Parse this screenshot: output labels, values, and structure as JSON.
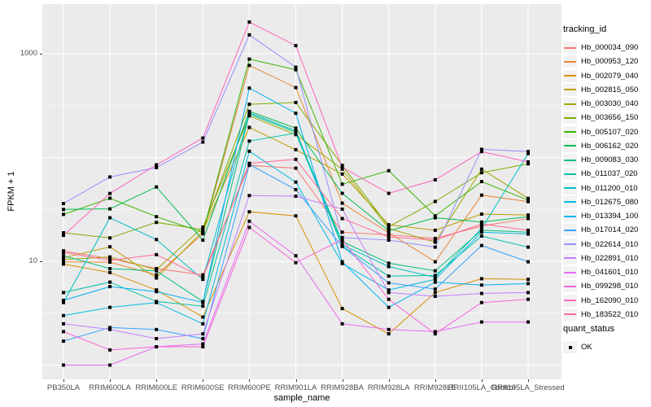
{
  "figure": {
    "panel_background": "#EBEBEB",
    "grid_color": "#FFFFFF",
    "point_color": "#000000",
    "axis_text_color": "#4D4D4D"
  },
  "chart_data": {
    "type": "line",
    "xlabel": "sample_name",
    "ylabel": "FPKM + 1",
    "y_scale": "log10",
    "y_ticks": [
      10,
      1000
    ],
    "y_tick_labels": [
      "10",
      "1000"
    ],
    "y_minor_ticks": [
      3.162,
      31.62,
      316.2
    ],
    "y_major_gridlines": [
      1,
      10,
      100,
      1000
    ],
    "ylim": [
      0.73,
      3000
    ],
    "grid": true,
    "legend_position": "right",
    "legend_title": "tracking_id",
    "point_shape": "filled-square",
    "categories": [
      "PB350LA",
      "RRIM600LA",
      "RRIM600LE",
      "RRIM600SE",
      "RRIM600PE",
      "RRIM901LA",
      "RRIM928BA",
      "RRIM928LA",
      "RRIM928LE",
      "RRII105LA_Control",
      "RRII105LA_Stressed"
    ],
    "series": [
      {
        "name": "Hb_000034_090",
        "color": "#F8766D",
        "values": [
          12.6,
          10.6,
          8.5,
          7.4,
          84,
          79,
          19.1,
          18,
          16.6,
          21.9,
          25.8
        ]
      },
      {
        "name": "Hb_000953_120",
        "color": "#EA8331",
        "values": [
          9.9,
          9.8,
          7.4,
          18.4,
          773,
          472,
          36.3,
          18.8,
          9.9,
          43.4,
          37.6
        ]
      },
      {
        "name": "Hb_002079_040",
        "color": "#D89000",
        "values": [
          9.4,
          7.8,
          5.3,
          2.9,
          30,
          27.4,
          3.5,
          2,
          5,
          6.8,
          6.7
        ]
      },
      {
        "name": "Hb_002815_050",
        "color": "#C09B00",
        "values": [
          10.8,
          13.8,
          6.9,
          19.5,
          195,
          119,
          69.3,
          22.5,
          19.9,
          28.5,
          27.9
        ]
      },
      {
        "name": "Hb_003030_040",
        "color": "#A3A500",
        "values": [
          10.4,
          11,
          8.3,
          21.3,
          252,
          166,
          77.3,
          20.7,
          15.3,
          77.3,
          40.4
        ]
      },
      {
        "name": "Hb_003656_150",
        "color": "#7CAE00",
        "values": [
          18.8,
          16.8,
          23.7,
          20.2,
          326,
          339,
          84,
          21.6,
          37.7,
          71.4,
          86.8
        ]
      },
      {
        "name": "Hb_005107_020",
        "color": "#39B600",
        "values": [
          28.3,
          40.5,
          26.9,
          19,
          887,
          700,
          55.3,
          74.7,
          27.4,
          58.6,
          38.9
        ]
      },
      {
        "name": "Hb_006162_020",
        "color": "#00BB4E",
        "values": [
          31.6,
          32,
          52,
          16,
          279,
          192,
          45.2,
          19.7,
          26.3,
          23.9,
          26.9
        ]
      },
      {
        "name": "Hb_009083_030",
        "color": "#00BF7D",
        "values": [
          11.3,
          8.5,
          8.1,
          4.1,
          263,
          175,
          15.5,
          9.6,
          8.1,
          19.9,
          19.1
        ]
      },
      {
        "name": "Hb_011037_020",
        "color": "#00C1A3",
        "values": [
          5,
          6.3,
          4.1,
          3.7,
          144,
          172,
          14,
          7.2,
          7.3,
          17.5,
          13.7
        ]
      },
      {
        "name": "Hb_011200_010",
        "color": "#00BFC4",
        "values": [
          4,
          26.3,
          16.2,
          6.7,
          270,
          181,
          14.4,
          8.9,
          7,
          20.7,
          109
        ]
      },
      {
        "name": "Hb_012675_080",
        "color": "#00BAE0",
        "values": [
          3,
          3.6,
          4,
          2.5,
          115,
          58,
          9.5,
          5.3,
          6.7,
          19.1,
          18.3
        ]
      },
      {
        "name": "Hb_013394_100",
        "color": "#00B0F6",
        "values": [
          4.2,
          5.7,
          5.1,
          4,
          467,
          267,
          9.9,
          3.6,
          6.3,
          5.9,
          6.1
        ]
      },
      {
        "name": "Hb_017014_020",
        "color": "#35A2FF",
        "values": [
          1.7,
          2.3,
          2.2,
          1.8,
          86,
          49,
          13.9,
          6.2,
          5.4,
          14.2,
          9.9
        ]
      },
      {
        "name": "Hb_022614_010",
        "color": "#9590FF",
        "values": [
          36,
          65,
          80,
          141,
          1520,
          741,
          16.9,
          16,
          13.7,
          120,
          114
        ]
      },
      {
        "name": "Hb_022891_010",
        "color": "#C77CFF",
        "values": [
          2.5,
          2.2,
          1.8,
          2,
          43,
          42.4,
          31.8,
          5,
          4.6,
          4.9,
          5
        ]
      },
      {
        "name": "Hb_041601_010",
        "color": "#E76BF3",
        "values": [
          1,
          1,
          1.5,
          1.6,
          24.3,
          11.3,
          2.5,
          2.2,
          2.1,
          2.6,
          2.6
        ]
      },
      {
        "name": "Hb_099298_010",
        "color": "#FA62DB",
        "values": [
          2.1,
          1.4,
          1.5,
          1.5,
          21.2,
          9.7,
          16.2,
          4.3,
          2,
          4,
          4.3
        ]
      },
      {
        "name": "Hb_162090_010",
        "color": "#FF62BC",
        "values": [
          17.8,
          45,
          85,
          154,
          2018,
          1196,
          80.5,
          45.2,
          61,
          114,
          90.7
        ]
      },
      {
        "name": "Hb_183522_010",
        "color": "#FF6A98",
        "values": [
          12.2,
          10.2,
          11.6,
          7,
          88,
          96,
          25.8,
          17.2,
          16,
          22.9,
          19.9
        ]
      }
    ],
    "shape_legend": {
      "title": "quant_status",
      "items": [
        {
          "label": "OK"
        }
      ]
    }
  }
}
